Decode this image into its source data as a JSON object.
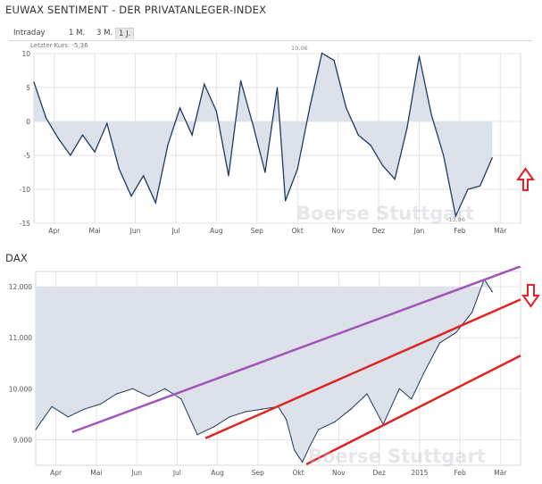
{
  "titles": {
    "sentiment": "EUWAX SENTIMENT - DER PRIVATANLEGER-INDEX",
    "dax": "DAX"
  },
  "range_buttons": [
    "Intraday",
    "1 M.",
    "3 M.",
    "1 J."
  ],
  "active_range": "1 J.",
  "last_price_label": "Letzter Kurs: -5,36",
  "watermark": "Boerse Stuttgart",
  "colors": {
    "line": "#1f3a5f",
    "fill": "#dde2ea",
    "arrow": "#e32028",
    "purple_trend": "#a155b9",
    "red_trend": "#e02222",
    "grid": "#e4e4e4"
  },
  "chart_data": [
    {
      "type": "area",
      "title": "EUWAX SENTIMENT - DER PRIVATANLEGER-INDEX",
      "x_ticks": [
        "Apr",
        "Mai",
        "Jun",
        "Jul",
        "Aug",
        "Sep",
        "Okt",
        "Nov",
        "Dez",
        "Jan",
        "Feb",
        "Mär"
      ],
      "y_ticks": [
        "10",
        "5",
        "0",
        "-5",
        "-10",
        "-15"
      ],
      "ylim": [
        -15,
        10
      ],
      "baseline": 0,
      "annotations": [
        "10,06",
        "-13,96"
      ],
      "arrow": "up",
      "x": [
        0,
        0.3,
        0.6,
        0.9,
        1.2,
        1.5,
        1.8,
        2.1,
        2.4,
        2.7,
        3.0,
        3.3,
        3.6,
        3.9,
        4.2,
        4.5,
        4.8,
        5.1,
        5.4,
        5.7,
        6.0,
        6.2,
        6.5,
        6.8,
        7.1,
        7.4,
        7.7,
        8.0,
        8.3,
        8.6,
        8.9,
        9.2,
        9.5,
        9.8,
        10.1,
        10.4,
        10.7,
        11.0,
        11.3
      ],
      "values": [
        5.8,
        0.5,
        -2.5,
        -5.0,
        -2.0,
        -4.5,
        -0.3,
        -7.0,
        -11.0,
        -8.0,
        -12.0,
        -3.5,
        2.0,
        -2.0,
        5.5,
        1.5,
        -8.0,
        6.0,
        -0.5,
        -7.5,
        5.0,
        -11.7,
        -7.0,
        2.0,
        10.06,
        9.0,
        2.0,
        -2.0,
        -3.5,
        -6.5,
        -8.5,
        -1.0,
        9.6,
        1.0,
        -5.0,
        -13.96,
        -10.0,
        -9.5,
        -5.36
      ]
    },
    {
      "type": "area",
      "title": "DAX",
      "x_ticks": [
        "Apr",
        "Mai",
        "Jun",
        "Jul",
        "Aug",
        "Sep",
        "Okt",
        "Nov",
        "Dez",
        "2015",
        "Feb",
        "Mär"
      ],
      "y_ticks": [
        "12.000",
        "11.000",
        "10.000",
        "9.000"
      ],
      "ylim": [
        8500,
        12300
      ],
      "fill_to": 12000,
      "arrow": "down",
      "x": [
        0,
        0.4,
        0.8,
        1.2,
        1.6,
        2.0,
        2.4,
        2.8,
        3.2,
        3.6,
        4.0,
        4.4,
        4.8,
        5.2,
        5.6,
        6.0,
        6.2,
        6.4,
        6.6,
        6.8,
        7.0,
        7.4,
        7.8,
        8.2,
        8.6,
        9.0,
        9.3,
        9.6,
        10.0,
        10.4,
        10.8,
        11.1,
        11.3
      ],
      "values": [
        9200,
        9650,
        9450,
        9600,
        9700,
        9900,
        10000,
        9850,
        10000,
        9800,
        9100,
        9250,
        9450,
        9550,
        9600,
        9650,
        9400,
        8800,
        8560,
        8900,
        9200,
        9350,
        9600,
        9900,
        9300,
        10000,
        9800,
        10300,
        10900,
        11100,
        11500,
        12150,
        11900
      ],
      "trendlines": [
        {
          "color": "purple",
          "from": [
            0.9,
            9150
          ],
          "to": [
            12.0,
            12400
          ]
        },
        {
          "color": "red",
          "from": [
            4.2,
            9030
          ],
          "to": [
            12.0,
            11750
          ]
        },
        {
          "color": "red",
          "from": [
            6.7,
            8520
          ],
          "to": [
            12.0,
            10650
          ]
        }
      ]
    }
  ]
}
